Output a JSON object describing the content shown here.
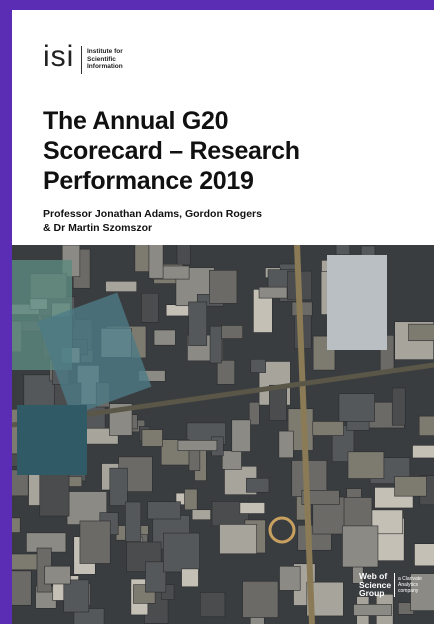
{
  "logo": {
    "mark": "isi",
    "lines": [
      "Institute for",
      "Scientific",
      "Information"
    ]
  },
  "title": [
    "The Annual G20",
    "Scorecard – Research",
    "Performance 2019"
  ],
  "authors": [
    "Professor Jonathan Adams, Gordon Rogers",
    "& Dr Martin Szomszor"
  ],
  "footer": {
    "brand": [
      "Web of",
      "Science",
      "Group"
    ],
    "tagline": [
      "a Clarivate",
      "Analytics",
      "company"
    ]
  }
}
